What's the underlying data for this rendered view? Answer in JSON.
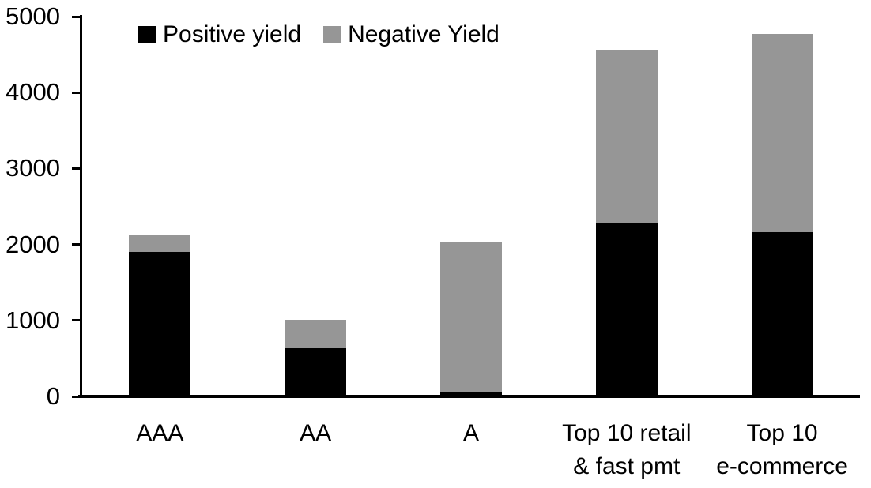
{
  "figure": {
    "background": "#ffffff",
    "text_color": "#000000",
    "axis_color": "#000000"
  },
  "chart_data": {
    "type": "bar",
    "stacked": true,
    "title": "",
    "xlabel": "",
    "ylabel": "",
    "categories": [
      "AAA",
      "AA",
      "A",
      "Top 10 retail & fast pmt",
      "Top 10 e-commerce"
    ],
    "category_lines": [
      [
        "AAA"
      ],
      [
        "AA"
      ],
      [
        "A"
      ],
      [
        "Top 10 retail",
        "& fast pmt"
      ],
      [
        "Top 10",
        "e-commerce"
      ]
    ],
    "series": [
      {
        "name": "Positive yield",
        "color": "#000000",
        "values": [
          1890,
          620,
          50,
          2280,
          2150
        ]
      },
      {
        "name": "Negative Yield",
        "color": "#969696",
        "values": [
          230,
          380,
          1980,
          2270,
          2610
        ]
      }
    ],
    "totals": [
      2120,
      1000,
      2030,
      4550,
      4760
    ],
    "ylim": [
      0,
      5000
    ],
    "yticks": [
      0,
      1000,
      2000,
      3000,
      4000,
      5000
    ],
    "grid": false,
    "legend_position": "top-left"
  }
}
